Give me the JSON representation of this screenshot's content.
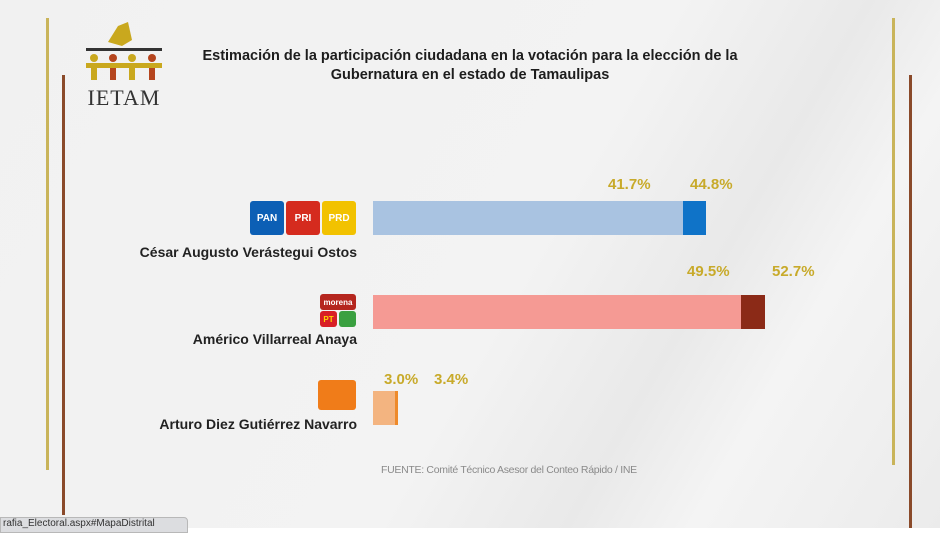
{
  "logo": {
    "text": "IETAM"
  },
  "chart_data": {
    "type": "bar",
    "orientation": "horizontal",
    "title": "Estimación de la participación ciudadana en la votación para la elección de la Gubernatura en el estado de Tamaulipas",
    "categories": [
      "César Augusto Verástegui Ostos",
      "Américo Villarreal Anaya",
      "Arturo Diez Gutiérrez Navarro"
    ],
    "parties": [
      [
        "PAN",
        "PRI",
        "PRD"
      ],
      [
        "morena",
        "PT",
        "Verde"
      ],
      [
        "Movimiento Ciudadano"
      ]
    ],
    "series": [
      {
        "values": [
          41.7,
          49.5,
          3.0
        ],
        "labels": [
          "41.7%",
          "49.5%",
          "3.0%"
        ]
      },
      {
        "values": [
          44.8,
          52.7,
          3.4
        ],
        "labels": [
          "44.8%",
          "52.7%",
          "3.4%"
        ]
      }
    ],
    "colors": {
      "light": [
        "#a9c3e1",
        "#f59a94",
        "#f3b480"
      ],
      "dark": [
        "#0f73c8",
        "#8b2a17",
        "#ee8a2a"
      ]
    },
    "label_color": "#c8aa2a",
    "source": "FUENTE: Comité Técnico Asesor del Conteo Rápido / INE"
  },
  "status_bar": "rafia_Electoral.aspx#MapaDistrital"
}
